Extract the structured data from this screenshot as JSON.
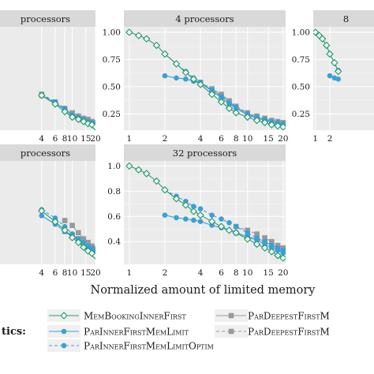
{
  "xlabel": "Normalized amount of limited memory",
  "legend": {
    "title": "tics:",
    "entries": [
      {
        "label": "MemBookingInnerFirst",
        "color": "#2a9d6f",
        "marker": "diamond-open",
        "dashed": false
      },
      {
        "label": "ParInnerFirstMemLimit",
        "color": "#3a9fd8",
        "marker": "circle",
        "dashed": false
      },
      {
        "label": "ParInnerFirstMemLimitOptim",
        "color": "#3a9fd8",
        "marker": "circle",
        "dashed": true
      },
      {
        "label": "ParDeepestFirstM",
        "color": "#999999",
        "marker": "square",
        "dashed": false
      },
      {
        "label": "ParDeepestFirstM",
        "color": "#999999",
        "marker": "square",
        "dashed": true
      }
    ]
  },
  "chart_data": [
    {
      "type": "line",
      "title": "processors",
      "x_scale": "log",
      "xlim": [
        1,
        20
      ],
      "ylim": [
        0.1,
        1.05
      ],
      "x_ticks": [
        4,
        6,
        8,
        10,
        15,
        20
      ],
      "y_ticks": [],
      "series": [
        {
          "x": [
            4,
            6,
            8,
            10,
            12,
            14,
            16,
            18,
            20
          ],
          "y": [
            0.42,
            0.34,
            0.27,
            0.22,
            0.2,
            0.18,
            0.16,
            0.15,
            0.13
          ]
        },
        {
          "x": [
            4,
            6,
            8,
            10,
            12,
            14,
            16,
            18,
            20
          ],
          "y": [
            0.42,
            0.35,
            0.29,
            0.23,
            0.21,
            0.19,
            0.17,
            0.16,
            0.14
          ]
        },
        {
          "x": [
            4,
            6,
            8,
            10,
            12,
            14,
            16,
            18,
            20
          ],
          "y": [
            0.43,
            0.36,
            0.3,
            0.24,
            0.22,
            0.2,
            0.18,
            0.17,
            0.15
          ]
        },
        {
          "x": [
            4,
            6,
            8,
            10,
            12,
            14,
            16,
            18,
            20
          ],
          "y": [
            0.42,
            0.35,
            0.29,
            0.25,
            0.22,
            0.2,
            0.19,
            0.17,
            0.16
          ]
        },
        {
          "x": [
            4,
            6,
            8,
            10,
            12,
            14,
            16,
            18,
            20
          ],
          "y": [
            0.43,
            0.36,
            0.3,
            0.26,
            0.23,
            0.21,
            0.2,
            0.18,
            0.17
          ]
        }
      ]
    },
    {
      "type": "line",
      "title": "4 processors",
      "x_scale": "log",
      "xlim": [
        0.9,
        21
      ],
      "ylim": [
        0.1,
        1.05
      ],
      "x_ticks": [
        1,
        2,
        4,
        6,
        8,
        10,
        15,
        20
      ],
      "y_ticks": [
        0.25,
        0.5,
        0.75,
        1.0
      ],
      "y_tick_labels": [
        "0.25",
        "0.50",
        "0.75",
        "1.00"
      ],
      "series": [
        {
          "x": [
            1,
            1.2,
            1.4,
            1.7,
            2,
            2.5,
            3,
            3.5,
            4,
            5,
            6,
            7,
            8,
            10,
            12,
            14,
            16,
            18,
            20
          ],
          "y": [
            1.0,
            0.97,
            0.94,
            0.88,
            0.8,
            0.71,
            0.63,
            0.57,
            0.52,
            0.43,
            0.36,
            0.3,
            0.26,
            0.22,
            0.19,
            0.17,
            0.15,
            0.14,
            0.13
          ]
        },
        {
          "x": [
            2,
            2.5,
            3,
            3.5,
            4,
            5,
            6,
            7,
            8,
            10,
            12,
            14,
            16,
            18,
            20
          ],
          "y": [
            0.6,
            0.58,
            0.57,
            0.55,
            0.53,
            0.46,
            0.4,
            0.34,
            0.3,
            0.24,
            0.21,
            0.19,
            0.17,
            0.16,
            0.15
          ]
        },
        {
          "x": [
            2,
            2.5,
            3,
            3.5,
            4,
            5,
            6,
            7,
            8,
            10,
            12,
            14,
            16,
            18,
            20
          ],
          "y": [
            0.8,
            0.71,
            0.64,
            0.58,
            0.54,
            0.47,
            0.41,
            0.35,
            0.31,
            0.25,
            0.22,
            0.2,
            0.18,
            0.17,
            0.16
          ]
        },
        {
          "x": [
            4,
            5,
            6,
            7,
            8,
            10,
            12,
            14,
            16,
            18,
            20
          ],
          "y": [
            0.53,
            0.47,
            0.42,
            0.36,
            0.31,
            0.25,
            0.22,
            0.2,
            0.18,
            0.17,
            0.16
          ]
        },
        {
          "x": [
            4,
            5,
            6,
            7,
            8,
            10,
            12,
            14,
            16,
            18,
            20
          ],
          "y": [
            0.54,
            0.48,
            0.43,
            0.37,
            0.32,
            0.26,
            0.23,
            0.21,
            0.19,
            0.18,
            0.17
          ]
        }
      ]
    },
    {
      "type": "line",
      "title": "8",
      "x_scale": "log",
      "xlim": [
        0.9,
        21
      ],
      "ylim": [
        0.1,
        1.05
      ],
      "x_ticks": [
        1,
        2
      ],
      "y_ticks": [
        0.25,
        0.5,
        0.75,
        1.0
      ],
      "y_tick_labels": [
        "0.25",
        "0.50",
        "0.75",
        "1.00"
      ],
      "series": [
        {
          "x": [
            1,
            1.2,
            1.4,
            1.7,
            2,
            2.5,
            3
          ],
          "y": [
            1.0,
            0.97,
            0.94,
            0.88,
            0.8,
            0.72,
            0.64
          ]
        },
        {
          "x": [
            2,
            2.5,
            3
          ],
          "y": [
            0.6,
            0.58,
            0.57
          ]
        },
        {
          "x": [
            2,
            2.5,
            3
          ],
          "y": [
            0.8,
            0.72,
            0.65
          ]
        }
      ]
    },
    {
      "type": "line",
      "title": "processors",
      "x_scale": "log",
      "xlim": [
        1,
        20
      ],
      "ylim": [
        0.2,
        1.05
      ],
      "x_ticks": [
        4,
        6,
        8,
        10,
        15,
        20
      ],
      "y_ticks": [],
      "series": [
        {
          "x": [
            4,
            6,
            8,
            10,
            12,
            14,
            16,
            18,
            20
          ],
          "y": [
            0.64,
            0.55,
            0.48,
            0.42,
            0.38,
            0.34,
            0.31,
            0.29,
            0.27
          ]
        },
        {
          "x": [
            4,
            6,
            8,
            10,
            12,
            14,
            16,
            18,
            20
          ],
          "y": [
            0.6,
            0.53,
            0.47,
            0.43,
            0.4,
            0.37,
            0.34,
            0.32,
            0.3
          ]
        },
        {
          "x": [
            4,
            6,
            8,
            10,
            12,
            14,
            16,
            18,
            20
          ],
          "y": [
            0.65,
            0.58,
            0.51,
            0.45,
            0.41,
            0.38,
            0.35,
            0.33,
            0.31
          ]
        },
        {
          "x": [
            8,
            10,
            12,
            14,
            16,
            18,
            20
          ],
          "y": [
            0.47,
            0.44,
            0.41,
            0.38,
            0.36,
            0.34,
            0.32
          ]
        },
        {
          "x": [
            8,
            10,
            12,
            14,
            16,
            18,
            20
          ],
          "y": [
            0.56,
            0.52,
            0.46,
            0.41,
            0.38,
            0.35,
            0.33
          ]
        }
      ]
    },
    {
      "type": "line",
      "title": "32 processors",
      "x_scale": "log",
      "xlim": [
        0.9,
        21
      ],
      "ylim": [
        0.22,
        1.04
      ],
      "x_ticks": [
        1,
        2,
        4,
        6,
        8,
        10,
        15,
        20
      ],
      "y_ticks": [
        0.4,
        0.6,
        0.8,
        1.0
      ],
      "y_tick_labels": [
        "0.4",
        "0.6",
        "0.8",
        "1.0"
      ],
      "series": [
        {
          "x": [
            1,
            1.2,
            1.4,
            1.7,
            2,
            2.5,
            3,
            3.5,
            4,
            5,
            6,
            7,
            8,
            10,
            12,
            14,
            16,
            18,
            20
          ],
          "y": [
            1.0,
            0.97,
            0.94,
            0.88,
            0.81,
            0.74,
            0.69,
            0.64,
            0.61,
            0.56,
            0.52,
            0.49,
            0.47,
            0.42,
            0.38,
            0.35,
            0.32,
            0.29,
            0.27
          ]
        },
        {
          "x": [
            2,
            2.5,
            3,
            3.5,
            4,
            5,
            6,
            7,
            8,
            10,
            12,
            14,
            16,
            18,
            20
          ],
          "y": [
            0.61,
            0.59,
            0.58,
            0.57,
            0.56,
            0.53,
            0.51,
            0.49,
            0.47,
            0.44,
            0.41,
            0.38,
            0.35,
            0.33,
            0.31
          ]
        },
        {
          "x": [
            2,
            2.5,
            3,
            3.5,
            4,
            5,
            6,
            7,
            8,
            10,
            12,
            14,
            16,
            18,
            20
          ],
          "y": [
            0.81,
            0.76,
            0.72,
            0.68,
            0.66,
            0.61,
            0.58,
            0.55,
            0.52,
            0.47,
            0.43,
            0.4,
            0.37,
            0.35,
            0.33
          ]
        },
        {
          "x": [
            8,
            10,
            12,
            14,
            16,
            18,
            20
          ],
          "y": [
            0.47,
            0.44,
            0.42,
            0.4,
            0.37,
            0.35,
            0.33
          ]
        },
        {
          "x": [
            8,
            10,
            12,
            14,
            16,
            18,
            20
          ],
          "y": [
            0.52,
            0.49,
            0.46,
            0.43,
            0.4,
            0.37,
            0.35
          ]
        }
      ]
    }
  ]
}
